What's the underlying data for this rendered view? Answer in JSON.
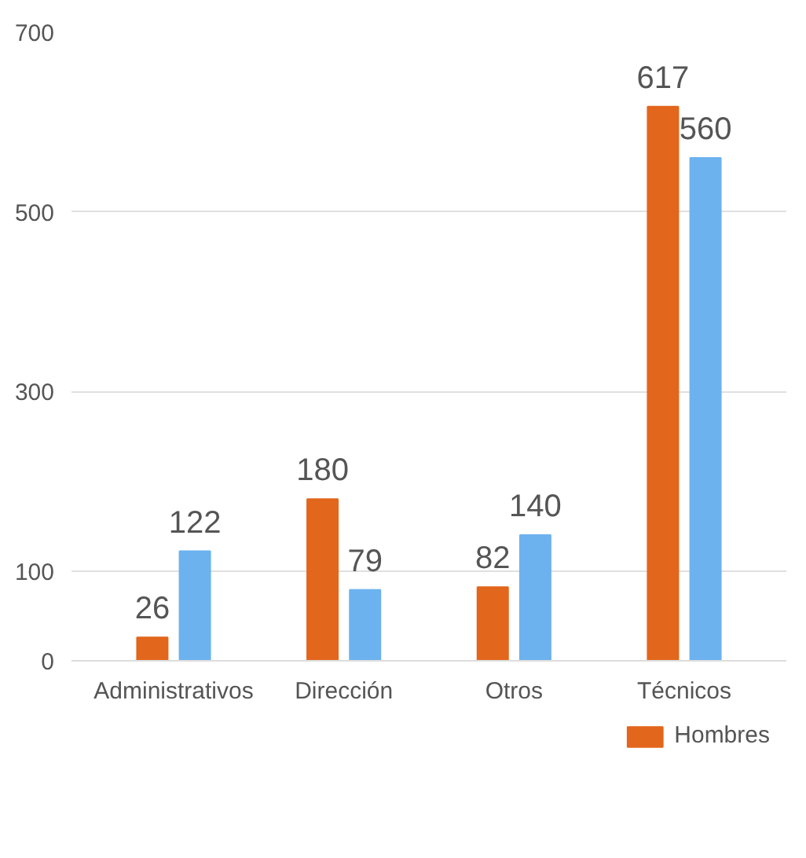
{
  "chart_data": {
    "type": "bar",
    "categories": [
      "Administrativos",
      "Dirección",
      "Otros",
      "Técnicos"
    ],
    "series": [
      {
        "name": "Hombres",
        "color": "#e2661c",
        "values": [
          26,
          180,
          82,
          617
        ]
      },
      {
        "color": "#6cb2ef",
        "values": [
          122,
          79,
          140,
          560
        ]
      }
    ],
    "ylim": [
      0,
      700
    ],
    "yticks": [
      0,
      100,
      300,
      500,
      700
    ],
    "grid": "y",
    "legend": "bottom right",
    "data_labels": true
  }
}
